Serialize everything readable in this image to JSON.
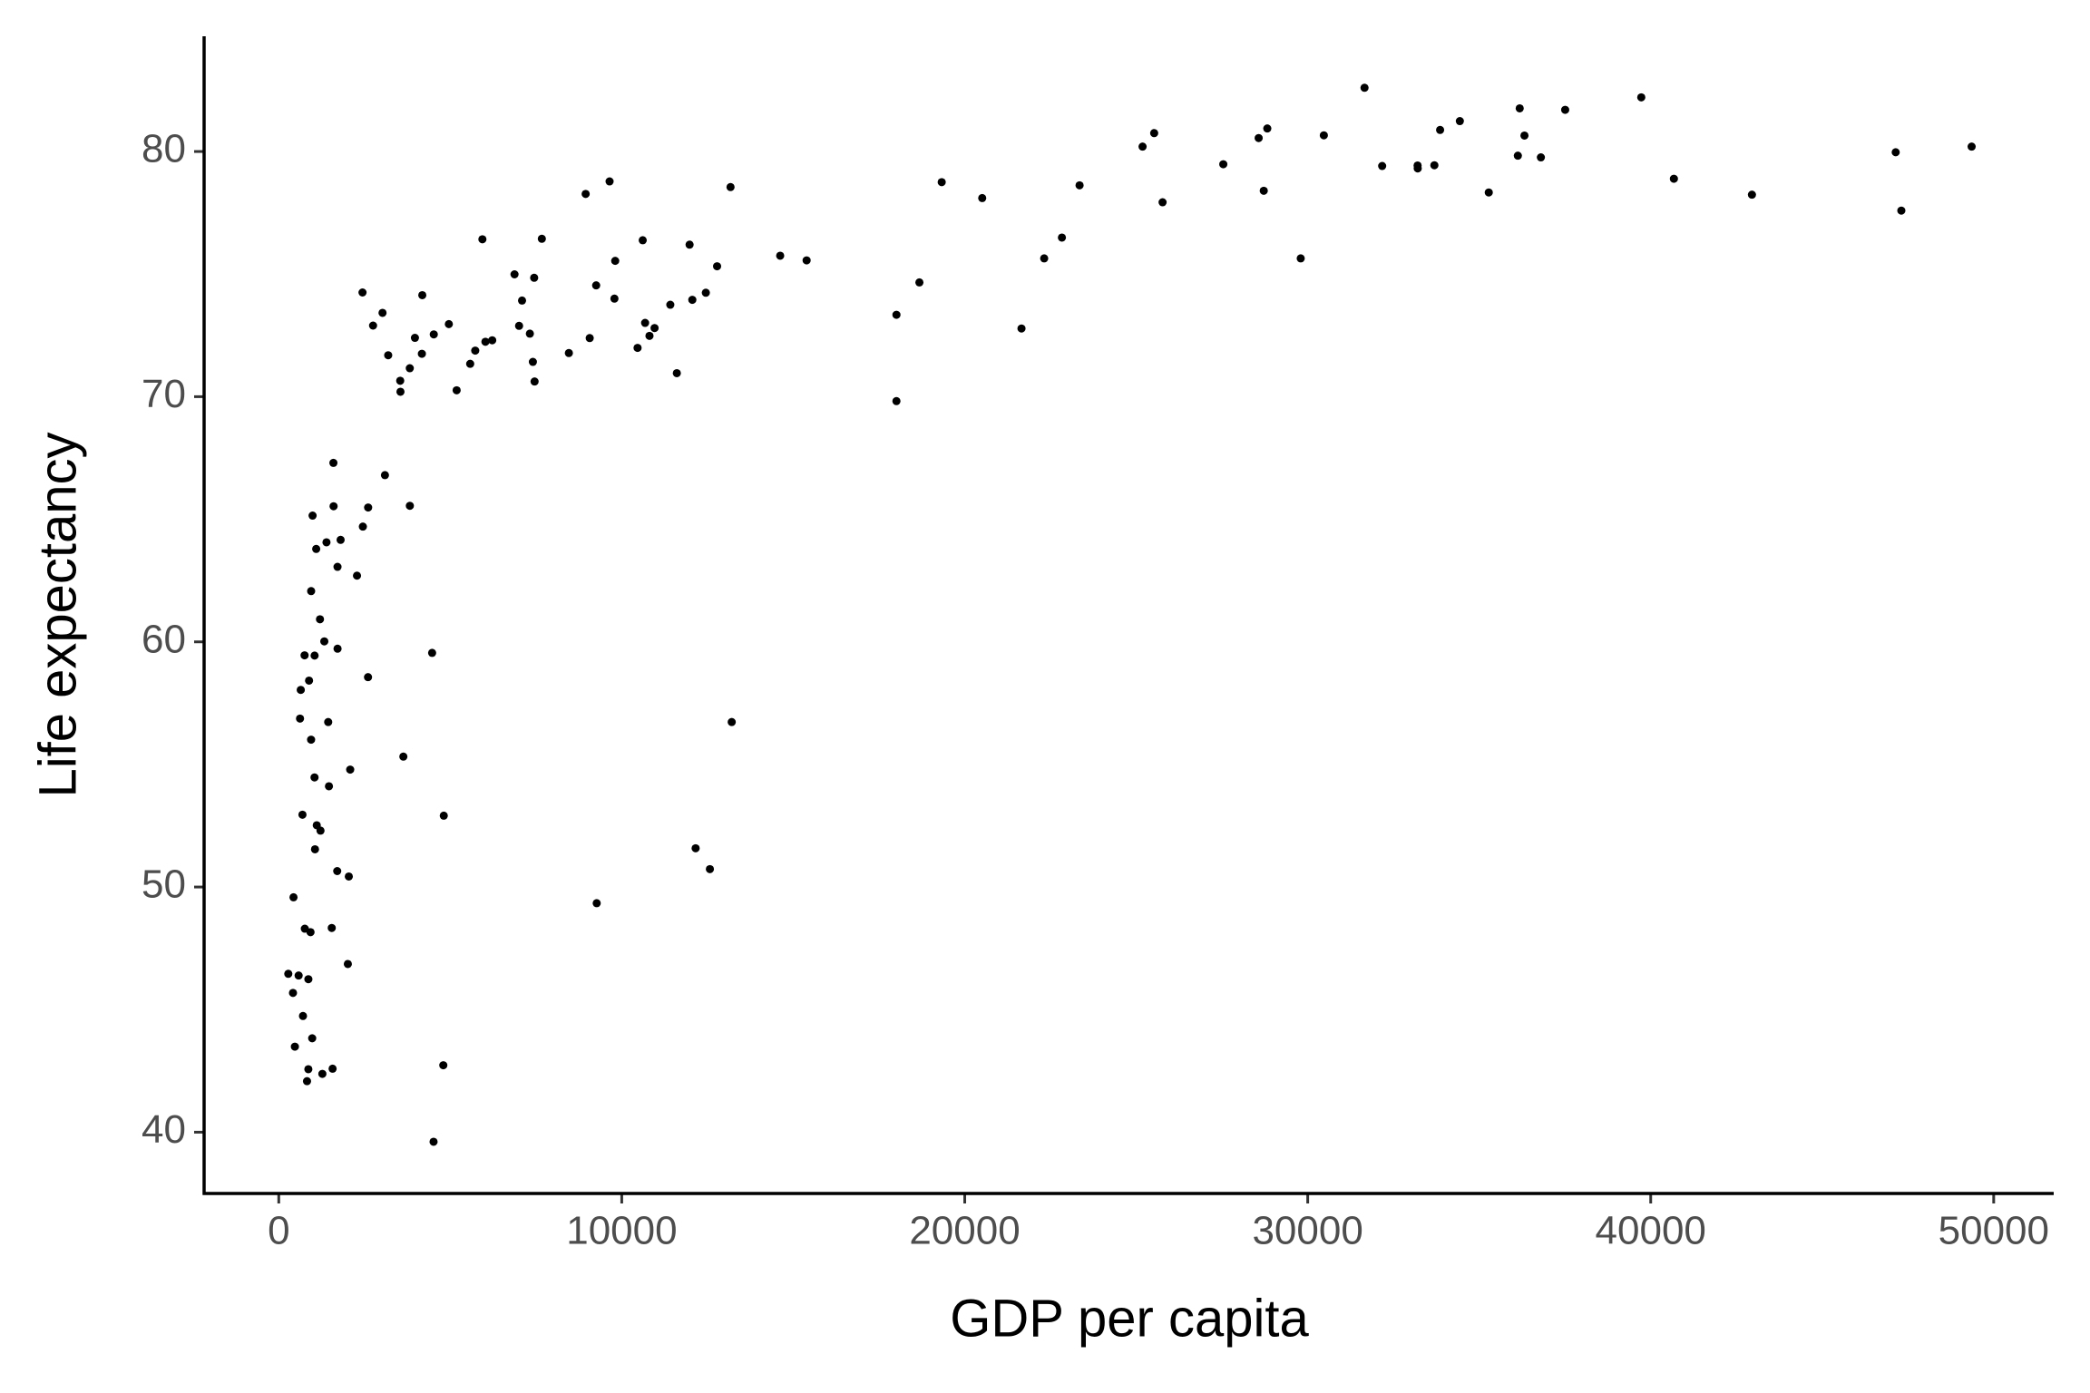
{
  "chart_data": {
    "type": "scatter",
    "xlabel": "GDP per capita",
    "ylabel": "Life expectancy",
    "color": "#000000",
    "xlim": [
      -2177,
      51750
    ],
    "ylim": [
      37.5,
      84.7
    ],
    "xticks": [
      0,
      10000,
      20000,
      30000,
      40000,
      50000
    ],
    "yticks": [
      40,
      50,
      60,
      70,
      80
    ],
    "grid": false,
    "x": [
      974.6,
      5937.0,
      6223.4,
      4797.2,
      12779.4,
      34435.4,
      36126.5,
      29796.0,
      1391.3,
      33692.6,
      1441.3,
      3822.1,
      7446.3,
      12569.9,
      9065.8,
      10680.8,
      1217.0,
      430.1,
      1713.8,
      2042.1,
      36319.2,
      706.0,
      1704.1,
      13171.6,
      4959.1,
      7006.6,
      986.1,
      277.6,
      3632.6,
      9645.1,
      1544.8,
      14619.2,
      8948.1,
      22833.3,
      35278.4,
      2082.5,
      6025.4,
      6873.3,
      5581.2,
      5728.4,
      12154.1,
      641.4,
      690.8,
      33207.1,
      30470.0,
      13206.5,
      752.7,
      32170.4,
      1327.6,
      27538.4,
      5186.1,
      942.7,
      579.2,
      1201.6,
      3548.3,
      39725.0,
      18008.9,
      36180.8,
      2452.2,
      3540.7,
      11605.7,
      4471.1,
      40676.0,
      25523.3,
      28569.7,
      7320.9,
      31656.1,
      4519.5,
      1463.2,
      1593.1,
      23348.1,
      47307.0,
      10461.1,
      1569.3,
      414.5,
      12057.5,
      1044.8,
      759.3,
      12451.7,
      1042.6,
      1803.2,
      10957.0,
      11977.6,
      3095.8,
      9253.9,
      3820.2,
      823.7,
      944.0,
      4811.1,
      1091.4,
      36797.9,
      25185.0,
      2749.3,
      619.7,
      2014.0,
      49357.2,
      22316.2,
      2605.9,
      9809.2,
      4172.8,
      7408.9,
      3190.5,
      15389.9,
      20509.6,
      19328.7,
      7670.1,
      10808.5,
      863.1,
      1598.4,
      21654.8,
      1712.5,
      9786.5,
      862.5,
      47143.2,
      18678.3,
      25768.3,
      926.1,
      9269.7,
      28821.1,
      3970.1,
      2602.4,
      4513.5,
      33859.7,
      37506.4,
      4184.5,
      28718.3,
      1107.5,
      7458.4,
      883.0,
      18008.5,
      7092.9,
      8458.3,
      1056.4,
      33203.3,
      42951.7,
      10611.5,
      11415.8,
      2441.6,
      3025.3,
      2280.8,
      1271.2,
      469.7
    ],
    "values": [
      43.83,
      76.42,
      72.3,
      42.73,
      75.32,
      81.24,
      79.83,
      75.64,
      64.06,
      79.44,
      56.73,
      65.55,
      74.85,
      50.73,
      72.39,
      73.01,
      52.3,
      49.58,
      59.72,
      50.43,
      80.65,
      44.74,
      50.65,
      78.55,
      72.96,
      72.89,
      65.15,
      46.46,
      55.32,
      78.78,
      48.33,
      75.75,
      78.27,
      76.49,
      78.33,
      54.79,
      72.24,
      74.99,
      71.34,
      71.88,
      51.58,
      58.04,
      52.95,
      79.31,
      80.66,
      56.73,
      59.45,
      79.41,
      60.02,
      79.48,
      70.26,
      56.01,
      46.39,
      60.92,
      70.2,
      82.21,
      73.34,
      81.76,
      64.7,
      70.65,
      70.96,
      59.55,
      78.89,
      80.75,
      80.55,
      72.57,
      82.6,
      72.54,
      54.11,
      67.3,
      78.62,
      77.59,
      71.99,
      42.59,
      45.68,
      73.95,
      59.44,
      48.3,
      74.24,
      54.47,
      64.16,
      72.8,
      76.2,
      66.8,
      74.54,
      71.16,
      42.08,
      62.07,
      52.91,
      63.79,
      79.76,
      80.2,
      72.9,
      56.87,
      46.86,
      80.2,
      75.64,
      65.48,
      75.54,
      71.75,
      71.42,
      71.69,
      75.56,
      78.1,
      78.75,
      76.44,
      72.48,
      46.24,
      65.53,
      72.78,
      63.06,
      74.0,
      42.57,
      79.97,
      74.66,
      77.93,
      48.16,
      49.34,
      80.94,
      72.4,
      58.56,
      39.61,
      80.88,
      81.7,
      74.14,
      78.4,
      52.52,
      70.62,
      58.42,
      69.82,
      73.92,
      71.78,
      51.54,
      79.43,
      78.24,
      76.38,
      73.75,
      74.25,
      73.42,
      62.7,
      42.38,
      43.49
    ]
  }
}
